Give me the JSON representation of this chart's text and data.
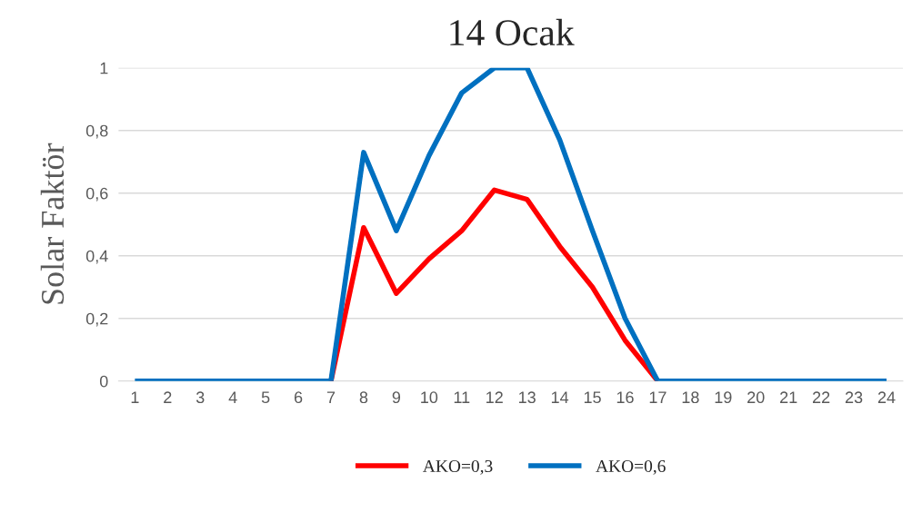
{
  "chart_data": {
    "type": "line",
    "title": "14 Ocak",
    "ylabel": "Solar Faktör",
    "categories": [
      "1",
      "2",
      "3",
      "4",
      "5",
      "6",
      "7",
      "8",
      "9",
      "10",
      "11",
      "12",
      "13",
      "14",
      "15",
      "16",
      "17",
      "18",
      "19",
      "20",
      "21",
      "22",
      "23",
      "24"
    ],
    "series": [
      {
        "name": "AKO=0,3",
        "color": "#ff0000",
        "values": [
          null,
          null,
          null,
          null,
          null,
          null,
          0,
          0.49,
          0.28,
          0.39,
          0.48,
          0.61,
          0.58,
          0.43,
          0.3,
          0.13,
          0,
          null,
          null,
          null,
          null,
          null,
          null,
          null
        ]
      },
      {
        "name": "AKO=0,6",
        "color": "#0070c0",
        "values": [
          0,
          0,
          0,
          0,
          0,
          0,
          0,
          0.73,
          0.48,
          0.72,
          0.92,
          1,
          1,
          0.77,
          0.48,
          0.2,
          0,
          0,
          0,
          0,
          0,
          0,
          0,
          0
        ]
      }
    ],
    "ylim": [
      0,
      1
    ],
    "yticks": [
      0,
      {
        "value": 0.2,
        "label": "0,2"
      },
      {
        "value": 0.4,
        "label": "0,4"
      },
      {
        "value": 0.6,
        "label": "0,6"
      },
      {
        "value": 0.8,
        "label": "0,8"
      },
      1
    ],
    "grid": "y",
    "legend": "bottom",
    "marker": "none",
    "line_style": "solid"
  }
}
